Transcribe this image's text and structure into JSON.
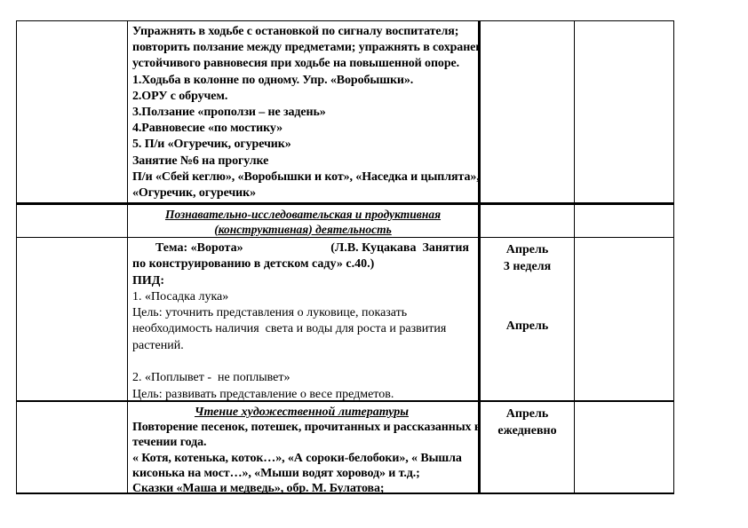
{
  "colors": {
    "background": "#ffffff",
    "text": "#000000",
    "border": "#000000"
  },
  "sections": {
    "physical": {
      "lines": [
        "Упражнять в ходьбе с остановкой по сигналу воспитателя;",
        "повторить ползание между предметами; упражнять в сохранении",
        "устойчивого равновесия при ходьбе на повышенной опоре.",
        "1.Ходьба в колонне по одному. Упр. «Воробышки».",
        "2.ОРУ с обручем.",
        "3.Ползание «проползи – не задень»",
        "4.Равновесие «по мостику»",
        "5. П/и «Огуречик, огуречик»",
        "Занятие №6 на прогулке",
        "П/и «Сбей кеглю», «Воробышки и кот», «Наседка и цыплята»,",
        "«Огуречик, огуречик»"
      ]
    },
    "cognitive": {
      "header_line1": "Познавательно-исследовательская и продуктивная",
      "header_line2": "(конструктивная) деятельность",
      "tema_left": "Тема: «Ворота»",
      "tema_right": "(Л.В. Куцакава  Занятия",
      "tema_line2": "по конструированию в детском саду» с.40.)",
      "pid_label": "ПИД:",
      "item1_title": "1. «Посадка лука»",
      "item1_line1": "Цель: уточнить представления о луковице, показать",
      "item1_line2": "необходимость наличия  света и воды для роста и развития",
      "item1_line3": "растений.",
      "item2_title": "2. «Поплывет -  не поплывет»",
      "item2_line1": "Цель: развивать представление о весе предметов.",
      "date_month": "Апрель",
      "date_week": "3 неделя",
      "date_month2": "Апрель"
    },
    "reading": {
      "heading": "Чтение художественной литературы",
      "line1": "Повторение песенок, потешек, прочитанных и рассказанных в",
      "line2": "течении года.",
      "line3": "« Котя, котенька, коток…», «А сороки-белобоки», « Вышла",
      "line4": "кисонька на мост…», «Мыши водят хоровод» и т.д.;",
      "line5": "Сказки «Маша и медведь», обр. М. Булатова;",
      "date_month": "Апрель",
      "date_freq": "ежедневно"
    }
  }
}
